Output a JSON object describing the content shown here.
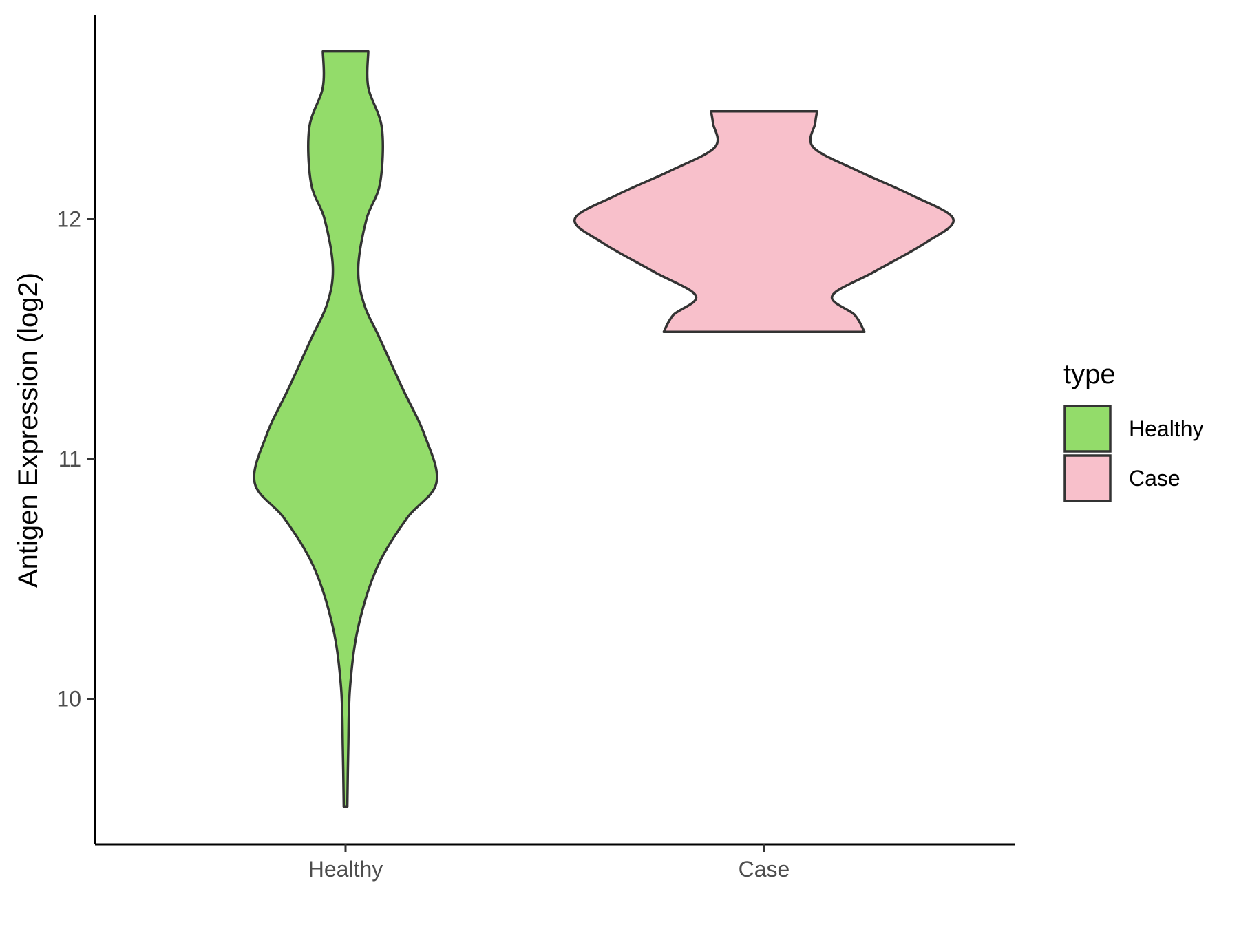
{
  "chart_data": {
    "type": "violin",
    "xlabel": "",
    "ylabel": "Antigen Expression (log2)",
    "categories": [
      "Healthy",
      "Case"
    ],
    "ylim": [
      9.4,
      12.85
    ],
    "yticks": [
      10,
      11,
      12
    ],
    "grid": false,
    "legend": {
      "title": "type",
      "placement": "right",
      "entries": [
        "Healthy",
        "Case"
      ]
    },
    "colors": {
      "Healthy": "#93dc6a",
      "Case": "#f8c0cb",
      "outline": "#333333"
    },
    "series": [
      {
        "name": "Healthy",
        "min": 9.55,
        "max": 12.7,
        "density_profile": [
          [
            9.55,
            0.02
          ],
          [
            9.8,
            0.03
          ],
          [
            10.05,
            0.05
          ],
          [
            10.3,
            0.14
          ],
          [
            10.55,
            0.35
          ],
          [
            10.75,
            0.67
          ],
          [
            10.9,
            1.0
          ],
          [
            11.1,
            0.87
          ],
          [
            11.3,
            0.62
          ],
          [
            11.5,
            0.38
          ],
          [
            11.65,
            0.2
          ],
          [
            11.8,
            0.14
          ],
          [
            12.0,
            0.23
          ],
          [
            12.15,
            0.38
          ],
          [
            12.38,
            0.4
          ],
          [
            12.55,
            0.25
          ],
          [
            12.7,
            0.25
          ]
        ]
      },
      {
        "name": "Case",
        "min": 11.53,
        "max": 12.45,
        "density_profile": [
          [
            11.53,
            0.53
          ],
          [
            11.6,
            0.48
          ],
          [
            11.68,
            0.36
          ],
          [
            11.78,
            0.58
          ],
          [
            11.9,
            0.85
          ],
          [
            12.0,
            1.0
          ],
          [
            12.1,
            0.78
          ],
          [
            12.2,
            0.5
          ],
          [
            12.3,
            0.26
          ],
          [
            12.4,
            0.27
          ],
          [
            12.45,
            0.28
          ]
        ]
      }
    ]
  }
}
